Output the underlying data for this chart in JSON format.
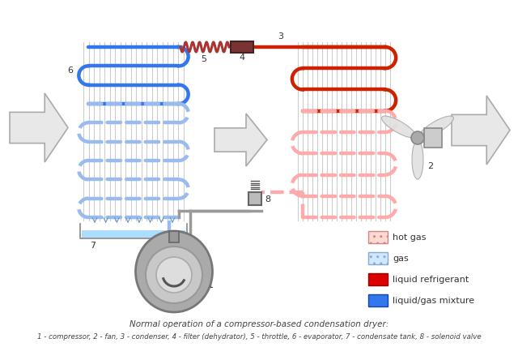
{
  "title_line1": "Normal operation of a compressor-based condensation dryer:",
  "title_line2": "1 - compressor, 2 - fan, 3 - condenser, 4 - filter (dehydrator), 5 - throttle, 6 - evaporator, 7 - condensate tank, 8 - solenoid valve",
  "legend": [
    {
      "label": "hot gas",
      "fc": "#ffd8d0",
      "ec": "#cc8888",
      "hatch": "oooo",
      "solid": false
    },
    {
      "label": "gas",
      "fc": "#d0e8ff",
      "ec": "#88aacc",
      "hatch": "oooo",
      "solid": false
    },
    {
      "label": "liquid refrigerant",
      "fc": "#dd0000",
      "ec": "#990000",
      "hatch": "",
      "solid": true
    },
    {
      "label": "liquid/gas mixture",
      "fc": "#3377ee",
      "ec": "#1144aa",
      "hatch": "",
      "solid": true
    }
  ],
  "evap_solid_color": "#3377ee",
  "evap_gas_color": "#99bbee",
  "cond_solid_color": "#cc2200",
  "cond_gas_color": "#ffaaaa",
  "spring_color": "#aa3333",
  "filter_color": "#7a3333",
  "arrow_fc": "#e8e8e8",
  "arrow_ec": "#aaaaaa",
  "fin_color": "#cccccc",
  "pipe_gray": "#999999",
  "comp_outer": "#aaaaaa",
  "comp_inner": "#cccccc",
  "tray_water": "#aaddff",
  "label_color": "#333333",
  "bg": "#ffffff"
}
